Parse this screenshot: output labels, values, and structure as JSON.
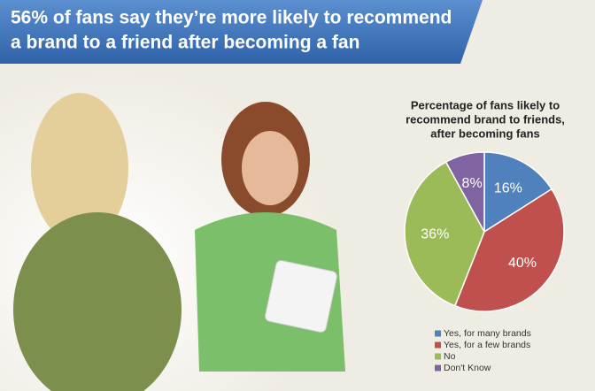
{
  "header": {
    "lines": [
      "56% of fans say they’re more likely to recommend",
      "a brand to a friend after becoming a fan"
    ]
  },
  "chart_data": {
    "type": "pie",
    "title": [
      "Percentage of fans likely to",
      "recommend brand to friends,",
      "after becoming fans"
    ],
    "categories": [
      "Yes, for many brands",
      "Yes, for a few brands",
      "No",
      "Don't Know"
    ],
    "values": [
      16,
      40,
      36,
      8
    ],
    "value_labels": [
      "16%",
      "40%",
      "36%",
      "8%"
    ],
    "colors": [
      "#4f81bd",
      "#c0504d",
      "#9bbb59",
      "#8064a2"
    ],
    "legend": "bottom"
  }
}
